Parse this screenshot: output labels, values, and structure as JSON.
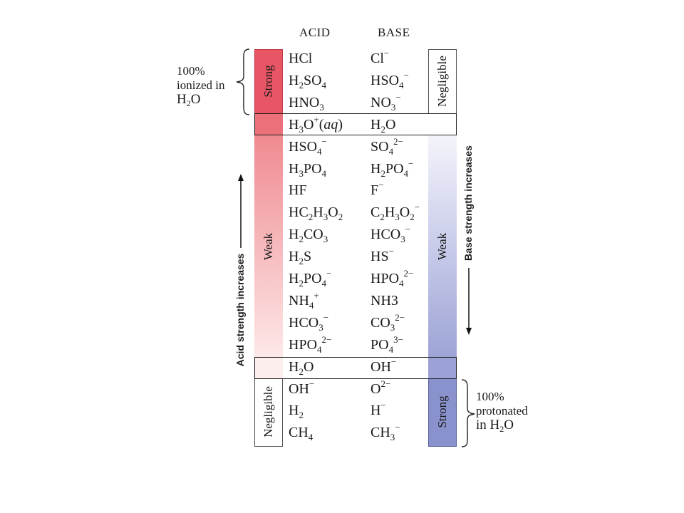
{
  "headers": {
    "acid": "ACID",
    "base": "BASE"
  },
  "acid_labels": {
    "strong": "Strong",
    "weak": "Weak",
    "negligible": "Negligible"
  },
  "base_labels": {
    "negligible": "Negligible",
    "weak": "Weak",
    "strong": "Strong"
  },
  "axis": {
    "acid": "Acid strength increases",
    "base": "Base strength increases"
  },
  "notes": {
    "ionized": {
      "line1": "100%",
      "line2": "ionized in",
      "line3_pre": "H",
      "line3_sub": "2",
      "line3_post": "O"
    },
    "protonated": {
      "line1": "100%",
      "line2": "protonated",
      "line3_pre": "in H",
      "line3_sub": "2",
      "line3_post": "O"
    }
  },
  "colors": {
    "acid_strong": "#e85565",
    "acid_weak_top": "#ef8a90",
    "base_weak_bottom": "#8e95cf",
    "base_strong": "#8a92cd"
  },
  "rows": [
    {
      "acid": [
        [
          "HCl",
          ""
        ]
      ],
      "base": [
        [
          "Cl",
          ""
        ],
        [
          "−",
          "sup"
        ]
      ]
    },
    {
      "acid": [
        [
          "H",
          ""
        ],
        [
          "2",
          "sub"
        ],
        [
          "SO",
          ""
        ],
        [
          "4",
          "sub"
        ]
      ],
      "base": [
        [
          "HSO",
          ""
        ],
        [
          "4",
          "sub"
        ],
        [
          "−",
          "sup"
        ]
      ]
    },
    {
      "acid": [
        [
          "HNO",
          ""
        ],
        [
          "3",
          "sub"
        ]
      ],
      "base": [
        [
          "NO",
          ""
        ],
        [
          "3",
          "sub"
        ],
        [
          "−",
          "sup"
        ]
      ]
    },
    {
      "acid": [
        [
          "H",
          ""
        ],
        [
          "3",
          "sub"
        ],
        [
          "O",
          ""
        ],
        [
          "+",
          "sup"
        ],
        [
          "(",
          ""
        ],
        [
          "aq",
          "i"
        ],
        [
          ")",
          ""
        ]
      ],
      "base": [
        [
          "H",
          ""
        ],
        [
          "2",
          "sub"
        ],
        [
          "O",
          ""
        ]
      ]
    },
    {
      "acid": [
        [
          "HSO",
          ""
        ],
        [
          "4",
          "sub"
        ],
        [
          "−",
          "sup"
        ]
      ],
      "base": [
        [
          "SO",
          ""
        ],
        [
          "4",
          "sub"
        ],
        [
          "2−",
          "sup"
        ]
      ]
    },
    {
      "acid": [
        [
          "H",
          ""
        ],
        [
          "3",
          "sub"
        ],
        [
          "PO",
          ""
        ],
        [
          "4",
          "sub"
        ]
      ],
      "base": [
        [
          "H",
          ""
        ],
        [
          "2",
          "sub"
        ],
        [
          "PO",
          ""
        ],
        [
          "4",
          "sub"
        ],
        [
          "−",
          "sup"
        ]
      ]
    },
    {
      "acid": [
        [
          "HF",
          ""
        ]
      ],
      "base": [
        [
          "F",
          ""
        ],
        [
          "−",
          "sup"
        ]
      ]
    },
    {
      "acid": [
        [
          "HC",
          ""
        ],
        [
          "2",
          "sub"
        ],
        [
          "H",
          ""
        ],
        [
          "3",
          "sub"
        ],
        [
          "O",
          ""
        ],
        [
          "2",
          "sub"
        ]
      ],
      "base": [
        [
          "C",
          ""
        ],
        [
          "2",
          "sub"
        ],
        [
          "H",
          ""
        ],
        [
          "3",
          "sub"
        ],
        [
          "O",
          ""
        ],
        [
          "2",
          "sub"
        ],
        [
          "−",
          "sup"
        ]
      ]
    },
    {
      "acid": [
        [
          "H",
          ""
        ],
        [
          "2",
          "sub"
        ],
        [
          "CO",
          ""
        ],
        [
          "3",
          "sub"
        ]
      ],
      "base": [
        [
          "HCO",
          ""
        ],
        [
          "3",
          "sub"
        ],
        [
          "−",
          "sup"
        ]
      ]
    },
    {
      "acid": [
        [
          "H",
          ""
        ],
        [
          "2",
          "sub"
        ],
        [
          "S",
          ""
        ]
      ],
      "base": [
        [
          "HS",
          ""
        ],
        [
          "−",
          "sup"
        ]
      ]
    },
    {
      "acid": [
        [
          "H",
          ""
        ],
        [
          "2",
          "sub"
        ],
        [
          "PO",
          ""
        ],
        [
          "4",
          "sub"
        ],
        [
          "−",
          "sup"
        ]
      ],
      "base": [
        [
          "HPO",
          ""
        ],
        [
          "4",
          "sub"
        ],
        [
          "2−",
          "sup"
        ]
      ]
    },
    {
      "acid": [
        [
          "NH",
          ""
        ],
        [
          "4",
          "sub"
        ],
        [
          "+",
          "sup"
        ]
      ],
      "base": [
        [
          "NH3",
          ""
        ]
      ]
    },
    {
      "acid": [
        [
          "HCO",
          ""
        ],
        [
          "3",
          "sub"
        ],
        [
          "−",
          "sup"
        ]
      ],
      "base": [
        [
          "CO",
          ""
        ],
        [
          "3",
          "sub"
        ],
        [
          "2−",
          "sup"
        ]
      ]
    },
    {
      "acid": [
        [
          "HPO",
          ""
        ],
        [
          "4",
          "sub"
        ],
        [
          "2−",
          "sup"
        ]
      ],
      "base": [
        [
          "PO",
          ""
        ],
        [
          "4",
          "sub"
        ],
        [
          "3−",
          "sup"
        ]
      ]
    },
    {
      "acid": [
        [
          "H",
          ""
        ],
        [
          "2",
          "sub"
        ],
        [
          "O",
          ""
        ]
      ],
      "base": [
        [
          "OH",
          ""
        ],
        [
          "−",
          "sup"
        ]
      ]
    },
    {
      "acid": [
        [
          "OH",
          ""
        ],
        [
          "−",
          "sup"
        ]
      ],
      "base": [
        [
          "O",
          ""
        ],
        [
          "2−",
          "sup"
        ]
      ]
    },
    {
      "acid": [
        [
          "H",
          ""
        ],
        [
          "2",
          "sub"
        ]
      ],
      "base": [
        [
          "H",
          ""
        ],
        [
          "−",
          "sup"
        ]
      ]
    },
    {
      "acid": [
        [
          "CH",
          ""
        ],
        [
          "4",
          "sub"
        ]
      ],
      "base": [
        [
          "CH",
          ""
        ],
        [
          "3",
          "sub"
        ],
        [
          "−",
          "sup"
        ]
      ]
    }
  ]
}
